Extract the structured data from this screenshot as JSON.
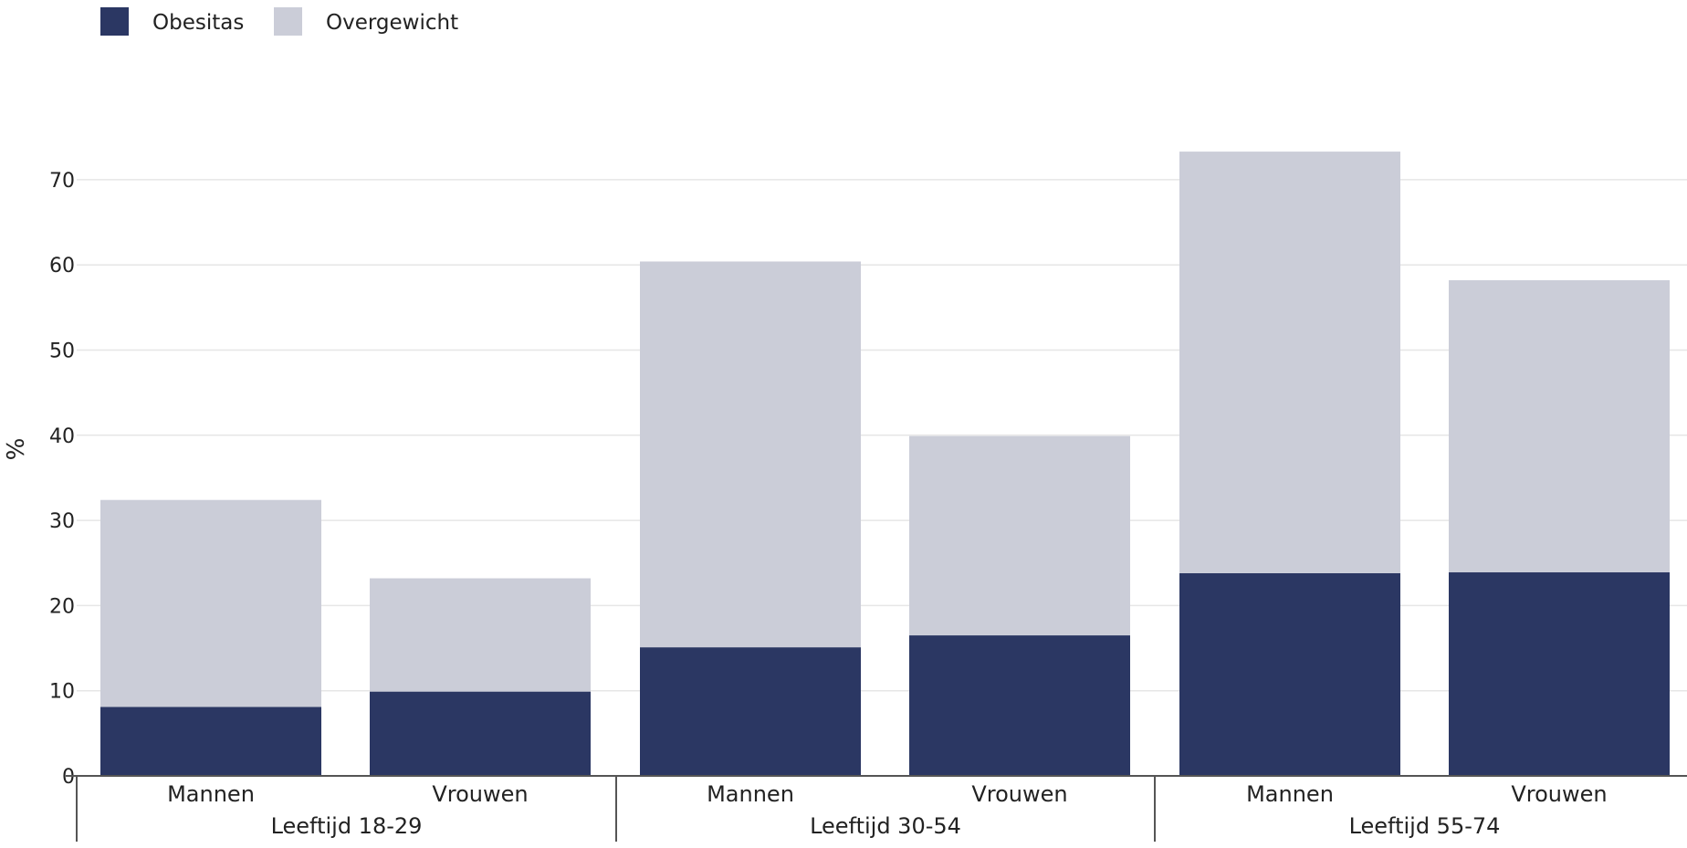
{
  "colors": {
    "obesitas": "#2b3763",
    "overgewicht": "#cbcdd8"
  },
  "chart_data": {
    "type": "bar",
    "stacked": true,
    "ylabel": "%",
    "ylim": [
      0,
      80
    ],
    "yticks": [
      0,
      10,
      20,
      30,
      40,
      50,
      60,
      70
    ],
    "grid": true,
    "legend_placement": "top-left",
    "groups": [
      {
        "label": "Leeftijd 18-29",
        "categories": [
          "Mannen",
          "Vrouwen"
        ]
      },
      {
        "label": "Leeftijd 30-54",
        "categories": [
          "Mannen",
          "Vrouwen"
        ]
      },
      {
        "label": "Leeftijd 55-74",
        "categories": [
          "Mannen",
          "Vrouwen"
        ]
      }
    ],
    "categories": [
      "Mannen",
      "Vrouwen",
      "Mannen",
      "Vrouwen",
      "Mannen",
      "Vrouwen"
    ],
    "series": [
      {
        "name": "Obesitas",
        "values": [
          8.1,
          9.9,
          15.1,
          16.5,
          23.8,
          23.9
        ]
      },
      {
        "name": "Overgewicht",
        "values": [
          24.3,
          13.3,
          45.3,
          23.4,
          49.5,
          34.3
        ]
      }
    ]
  }
}
